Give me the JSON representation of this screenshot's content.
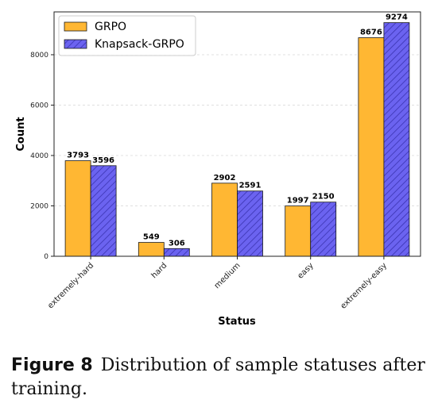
{
  "chart_data": {
    "type": "bar",
    "categories": [
      "extremely-hard",
      "hard",
      "medium",
      "easy",
      "extremely-easy"
    ],
    "series": [
      {
        "name": "GRPO",
        "values": [
          3793,
          549,
          2902,
          1997,
          8676
        ]
      },
      {
        "name": "Knapsack-GRPO",
        "values": [
          3596,
          306,
          2591,
          2150,
          9274
        ]
      }
    ],
    "title": "",
    "xlabel": "Status",
    "ylabel": "Count",
    "ylim": [
      0,
      9700
    ],
    "yticks": [
      0,
      2000,
      4000,
      6000,
      8000
    ],
    "grid": true,
    "legend_position": "top-left",
    "colors": {
      "GRPO": "#FFB733",
      "Knapsack-GRPO": "#6B63F0",
      "hatch": "#3A33B0",
      "edge": "#1a1a1a"
    }
  },
  "caption": {
    "label": "Figure 8",
    "text": "Distribution of sample statuses after training."
  }
}
